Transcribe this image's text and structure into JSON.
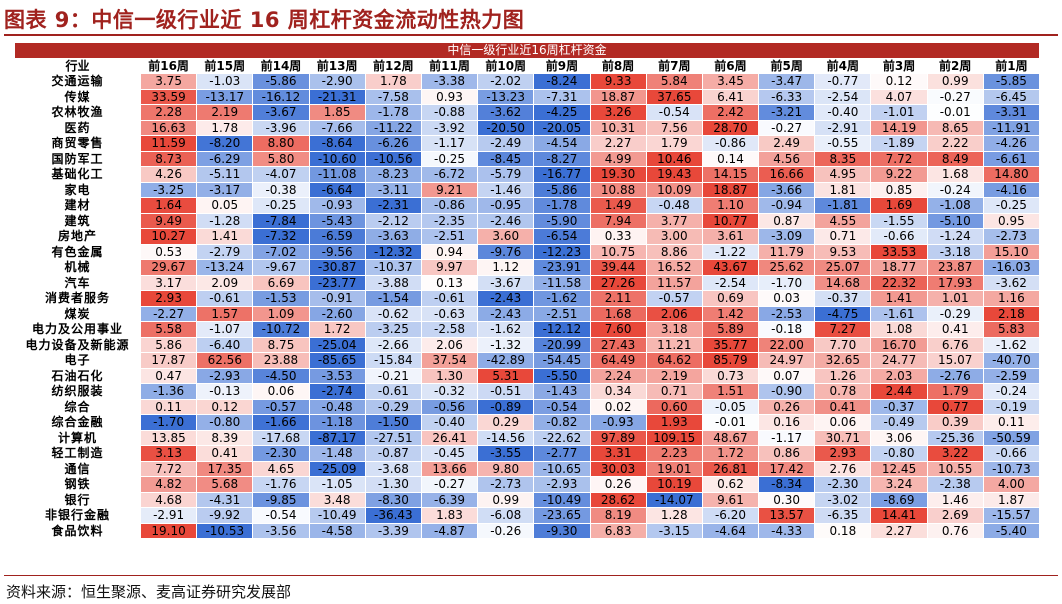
{
  "page": {
    "title": "图表 9：中信一级行业近 16 周杠杆资金流动性热力图",
    "source": "资料来源：恒生聚源、麦高证券研究发展部"
  },
  "table": {
    "super_header": "中信一级行业近16周杠杆资金",
    "first_col_header": "行业",
    "columns": [
      "前16周",
      "前15周",
      "前14周",
      "前13周",
      "前12周",
      "前11周",
      "前10周",
      "前9周",
      "前8周",
      "前7周",
      "前6周",
      "前5周",
      "前4周",
      "前3周",
      "前2周",
      "前1周"
    ],
    "rows": [
      {
        "industry": "交通运输",
        "values": [
          "3.75",
          "-1.03",
          "-5.86",
          "-2.90",
          "1.78",
          "-3.38",
          "-2.02",
          "-8.24",
          "9.33",
          "5.84",
          "3.45",
          "-3.47",
          "-0.77",
          "0.12",
          "0.99",
          "-5.85"
        ]
      },
      {
        "industry": "传媒",
        "values": [
          "33.59",
          "-13.17",
          "-16.12",
          "-21.31",
          "-7.58",
          "0.93",
          "-13.23",
          "-7.31",
          "18.87",
          "37.65",
          "6.41",
          "-6.33",
          "-2.54",
          "4.07",
          "-0.27",
          "-6.45"
        ]
      },
      {
        "industry": "农林牧渔",
        "values": [
          "2.28",
          "2.19",
          "-3.67",
          "1.85",
          "-1.78",
          "-0.88",
          "-3.62",
          "-4.25",
          "3.26",
          "-0.54",
          "2.42",
          "-3.21",
          "-0.40",
          "-1.01",
          "-0.01",
          "-3.31"
        ]
      },
      {
        "industry": "医药",
        "values": [
          "16.63",
          "1.78",
          "-3.96",
          "-7.66",
          "-11.22",
          "-3.92",
          "-20.50",
          "-20.05",
          "10.31",
          "7.56",
          "28.70",
          "-0.27",
          "-2.91",
          "14.19",
          "8.65",
          "-11.91"
        ]
      },
      {
        "industry": "商贸零售",
        "values": [
          "11.59",
          "-8.20",
          "8.80",
          "-8.64",
          "-6.26",
          "-1.17",
          "-2.49",
          "-4.54",
          "2.27",
          "1.79",
          "-0.86",
          "2.49",
          "-0.55",
          "-1.89",
          "2.22",
          "-4.26"
        ]
      },
      {
        "industry": "国防军工",
        "values": [
          "8.73",
          "-6.29",
          "5.80",
          "-10.60",
          "-10.56",
          "-0.25",
          "-8.45",
          "-8.27",
          "4.99",
          "10.46",
          "0.14",
          "4.56",
          "8.35",
          "7.72",
          "8.49",
          "-6.61"
        ]
      },
      {
        "industry": "基础化工",
        "values": [
          "4.26",
          "-5.11",
          "-4.07",
          "-11.08",
          "-8.23",
          "-6.72",
          "-5.79",
          "-16.77",
          "19.30",
          "19.43",
          "14.15",
          "16.66",
          "4.95",
          "9.22",
          "1.68",
          "14.80"
        ]
      },
      {
        "industry": "家电",
        "values": [
          "-3.25",
          "-3.17",
          "-0.38",
          "-6.64",
          "-3.11",
          "9.21",
          "-1.46",
          "-5.86",
          "10.88",
          "10.09",
          "18.87",
          "-3.66",
          "1.81",
          "0.85",
          "-0.24",
          "-4.16"
        ]
      },
      {
        "industry": "建材",
        "values": [
          "1.64",
          "0.05",
          "-0.25",
          "-0.93",
          "-2.31",
          "-0.86",
          "-0.95",
          "-1.78",
          "1.49",
          "-0.48",
          "1.10",
          "-0.94",
          "-1.81",
          "1.69",
          "-1.08",
          "-0.25"
        ]
      },
      {
        "industry": "建筑",
        "values": [
          "9.49",
          "-1.28",
          "-7.84",
          "-5.43",
          "-2.12",
          "-2.35",
          "-2.46",
          "-5.90",
          "7.94",
          "3.77",
          "10.77",
          "0.87",
          "4.55",
          "-1.55",
          "-5.10",
          "0.95"
        ]
      },
      {
        "industry": "房地产",
        "values": [
          "10.27",
          "1.41",
          "-7.32",
          "-6.59",
          "-3.63",
          "-2.51",
          "3.60",
          "-6.54",
          "0.33",
          "3.00",
          "3.61",
          "-3.09",
          "0.71",
          "-0.66",
          "-1.24",
          "-2.73"
        ]
      },
      {
        "industry": "有色金属",
        "values": [
          "0.53",
          "-2.79",
          "-7.02",
          "-9.56",
          "-12.32",
          "0.94",
          "-9.76",
          "-12.23",
          "10.75",
          "8.86",
          "-1.22",
          "11.79",
          "9.53",
          "33.53",
          "-3.18",
          "15.10"
        ]
      },
      {
        "industry": "机械",
        "values": [
          "29.67",
          "-13.24",
          "-9.67",
          "-30.87",
          "-10.37",
          "9.97",
          "1.12",
          "-23.91",
          "39.44",
          "16.52",
          "43.67",
          "25.62",
          "25.07",
          "18.77",
          "23.87",
          "-16.03"
        ]
      },
      {
        "industry": "汽车",
        "values": [
          "3.17",
          "2.09",
          "6.69",
          "-23.77",
          "-3.88",
          "0.13",
          "-3.67",
          "-11.58",
          "27.26",
          "11.57",
          "-2.54",
          "-1.70",
          "14.68",
          "22.32",
          "17.93",
          "-3.62"
        ]
      },
      {
        "industry": "消费者服务",
        "values": [
          "2.93",
          "-0.61",
          "-1.53",
          "-0.91",
          "-1.54",
          "-0.61",
          "-2.43",
          "-1.62",
          "2.11",
          "-0.57",
          "0.69",
          "0.03",
          "-0.37",
          "1.41",
          "1.01",
          "1.16"
        ]
      },
      {
        "industry": "煤炭",
        "values": [
          "-2.27",
          "1.57",
          "1.09",
          "-2.60",
          "-0.62",
          "-0.63",
          "-2.43",
          "-2.51",
          "1.68",
          "2.06",
          "1.42",
          "-2.53",
          "-4.75",
          "-1.61",
          "-0.29",
          "2.18"
        ]
      },
      {
        "industry": "电力及公用事业",
        "values": [
          "5.58",
          "-1.07",
          "-10.72",
          "1.72",
          "-3.25",
          "-2.58",
          "-1.62",
          "-12.12",
          "7.60",
          "3.18",
          "5.89",
          "-0.18",
          "7.27",
          "1.08",
          "0.41",
          "5.83"
        ]
      },
      {
        "industry": "电力设备及新能源",
        "values": [
          "5.86",
          "-6.40",
          "8.75",
          "-25.04",
          "-2.66",
          "2.06",
          "-1.32",
          "-20.99",
          "27.43",
          "11.21",
          "35.77",
          "22.00",
          "7.70",
          "16.70",
          "6.76",
          "-1.62"
        ]
      },
      {
        "industry": "电子",
        "values": [
          "17.87",
          "62.56",
          "23.88",
          "-85.65",
          "-15.84",
          "37.54",
          "-42.89",
          "-54.45",
          "64.49",
          "64.62",
          "85.79",
          "24.97",
          "32.65",
          "24.77",
          "15.07",
          "-40.70"
        ]
      },
      {
        "industry": "石油石化",
        "values": [
          "0.47",
          "-2.93",
          "-4.50",
          "-3.53",
          "-0.21",
          "1.30",
          "5.31",
          "-5.50",
          "2.24",
          "2.19",
          "0.73",
          "0.07",
          "1.26",
          "2.03",
          "-2.76",
          "-2.59"
        ]
      },
      {
        "industry": "纺织服装",
        "values": [
          "-1.36",
          "-0.13",
          "0.06",
          "-2.74",
          "-0.61",
          "-0.32",
          "-0.51",
          "-1.43",
          "0.34",
          "0.71",
          "1.51",
          "-0.90",
          "0.78",
          "2.44",
          "1.79",
          "-0.24"
        ]
      },
      {
        "industry": "综合",
        "values": [
          "0.11",
          "0.12",
          "-0.57",
          "-0.48",
          "-0.29",
          "-0.56",
          "-0.89",
          "-0.54",
          "0.02",
          "0.60",
          "-0.05",
          "0.26",
          "0.41",
          "-0.37",
          "0.77",
          "-0.19"
        ]
      },
      {
        "industry": "综合金融",
        "values": [
          "-1.70",
          "-0.80",
          "-1.66",
          "-1.18",
          "-1.50",
          "-0.40",
          "0.29",
          "-0.82",
          "-0.93",
          "1.93",
          "-0.01",
          "0.16",
          "0.06",
          "-0.49",
          "0.39",
          "0.11"
        ]
      },
      {
        "industry": "计算机",
        "values": [
          "13.85",
          "8.39",
          "-17.68",
          "-87.17",
          "-27.51",
          "26.41",
          "-14.56",
          "-22.62",
          "97.89",
          "109.15",
          "48.67",
          "-1.17",
          "30.71",
          "3.06",
          "-25.36",
          "-50.59"
        ]
      },
      {
        "industry": "轻工制造",
        "values": [
          "3.13",
          "0.41",
          "-2.30",
          "-1.48",
          "-0.87",
          "-0.45",
          "-3.55",
          "-2.77",
          "3.31",
          "2.23",
          "1.72",
          "0.86",
          "2.93",
          "-0.80",
          "3.22",
          "-0.66"
        ]
      },
      {
        "industry": "通信",
        "values": [
          "7.72",
          "17.35",
          "4.65",
          "-25.09",
          "-3.68",
          "13.66",
          "9.80",
          "-10.65",
          "30.03",
          "19.01",
          "26.81",
          "17.42",
          "2.76",
          "12.45",
          "10.55",
          "-10.73"
        ]
      },
      {
        "industry": "钢铁",
        "values": [
          "4.82",
          "5.68",
          "-1.76",
          "-1.05",
          "-1.30",
          "-0.27",
          "-2.73",
          "-2.93",
          "0.26",
          "10.19",
          "0.62",
          "-8.34",
          "-2.30",
          "3.24",
          "-2.38",
          "4.00"
        ]
      },
      {
        "industry": "银行",
        "values": [
          "4.68",
          "-4.31",
          "-9.85",
          "3.48",
          "-8.30",
          "-6.39",
          "0.99",
          "-10.49",
          "28.62",
          "-14.07",
          "9.61",
          "0.30",
          "-3.02",
          "-8.69",
          "1.46",
          "1.87"
        ]
      },
      {
        "industry": "非银行金融",
        "values": [
          "-2.91",
          "-9.92",
          "-0.54",
          "-10.49",
          "-36.43",
          "1.83",
          "-6.08",
          "-23.65",
          "8.19",
          "1.28",
          "-6.20",
          "13.57",
          "-6.35",
          "14.41",
          "2.69",
          "-15.57"
        ]
      },
      {
        "industry": "食品饮料",
        "values": [
          "19.10",
          "-10.53",
          "-3.56",
          "-4.58",
          "-3.39",
          "-4.87",
          "-0.26",
          "-9.30",
          "6.83",
          "-3.15",
          "-4.64",
          "-4.33",
          "0.18",
          "2.27",
          "0.76",
          "-5.40"
        ]
      }
    ]
  },
  "colors": {
    "title": "#a0221e",
    "super_header_bg": "#b22a24",
    "positive_strong": "#e8483a",
    "negative_strong": "#3b6fd4",
    "neutral": "#ffffff"
  }
}
